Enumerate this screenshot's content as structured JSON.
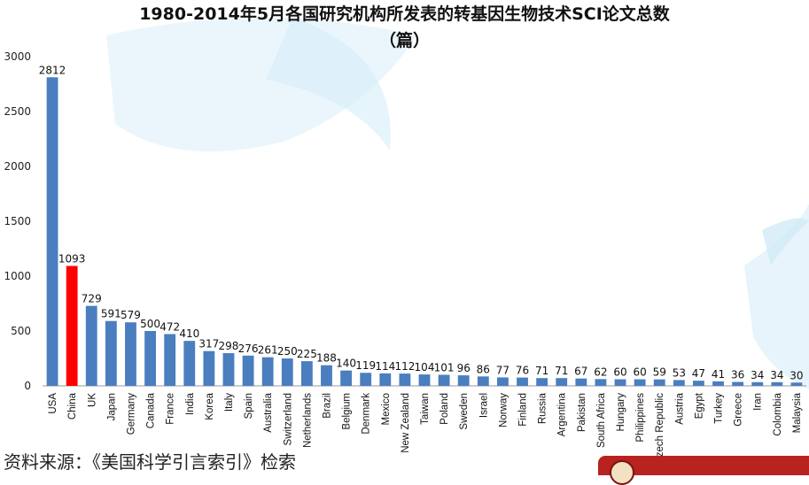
{
  "title_line1": "1980-2014年5月各国研究机构所发表的转基因生物技术SCI论文总数",
  "title_line2": "（篇）",
  "source": "资料来源：《美国科学引言索引》检索",
  "colors": {
    "default_bar": "#4a7ebf",
    "highlight_bar": "#ff0000"
  },
  "chart_data": {
    "type": "bar",
    "title": "1980-2014年5月各国研究机构所发表的转基因生物技术SCI论文总数（篇）",
    "xlabel": "",
    "ylabel": "",
    "ylim": [
      0,
      3000
    ],
    "yticks": [
      0,
      500,
      1000,
      1500,
      2000,
      2500,
      3000
    ],
    "grid": false,
    "highlight_category": "China",
    "categories": [
      "USA",
      "China",
      "UK",
      "Japan",
      "Germany",
      "Canada",
      "France",
      "India",
      "Korea",
      "Italy",
      "Spain",
      "Australia",
      "Switzerland",
      "Netherlands",
      "Brazil",
      "Belgium",
      "Denmark",
      "Mexico",
      "New Zealand",
      "Taiwan",
      "Poland",
      "Sweden",
      "Israel",
      "Norway",
      "Finland",
      "Russia",
      "Argentina",
      "Pakistan",
      "South Africa",
      "Hungary",
      "Philippines",
      "Czech Republic",
      "Austria",
      "Egypt",
      "Turkey",
      "Greece",
      "Iran",
      "Colombia",
      "Malaysia"
    ],
    "values": [
      2812,
      1093,
      729,
      591,
      579,
      500,
      472,
      410,
      317,
      298,
      276,
      261,
      250,
      225,
      188,
      140,
      119,
      114,
      112,
      104,
      101,
      96,
      86,
      77,
      76,
      71,
      71,
      67,
      62,
      60,
      60,
      59,
      53,
      47,
      41,
      36,
      34,
      34,
      30
    ]
  }
}
